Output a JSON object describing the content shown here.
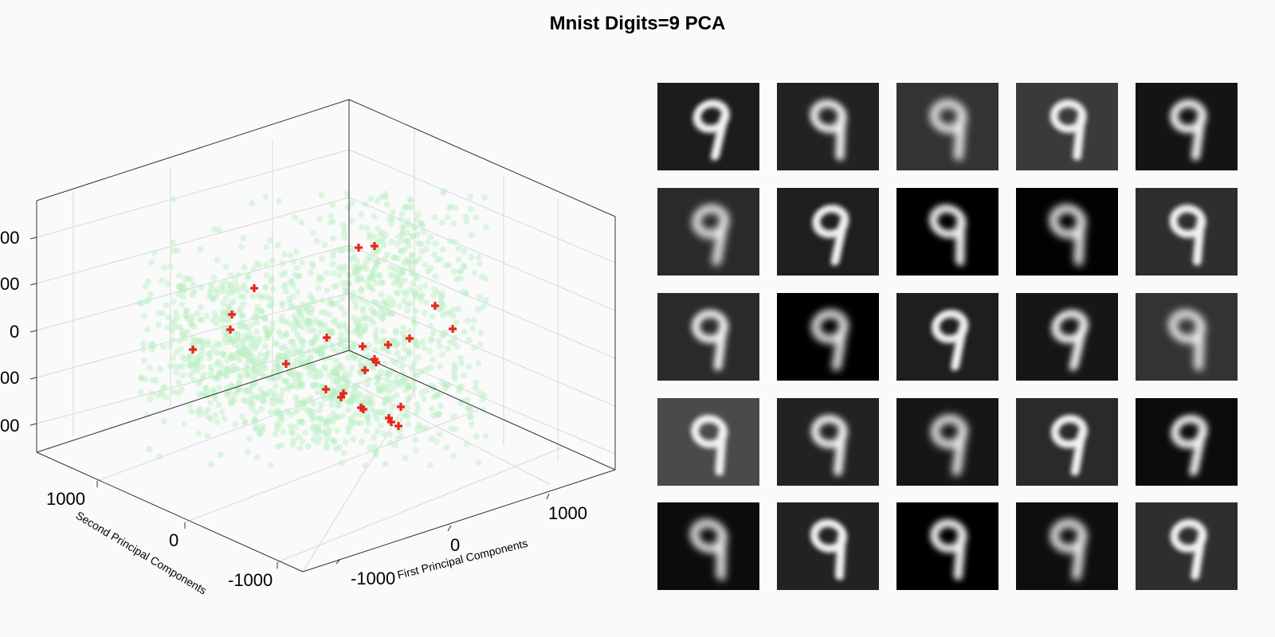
{
  "chart_data": {
    "type": "scatter",
    "projection": "3d",
    "title": "Mnist Digits=9 PCA",
    "xlabel": "First Principal  Components",
    "ylabel": "Second Principal  Components",
    "zlabel": "",
    "grid": true,
    "x_ticks": [
      "-1000",
      "0",
      "1000"
    ],
    "y_ticks": [
      "1000",
      "0",
      "-1000"
    ],
    "z_ticks": [
      "00",
      "00",
      "0",
      "00",
      "00"
    ],
    "series": [
      {
        "role": "samples",
        "color": "#b8f0c0",
        "marker": "circle",
        "count_shown": "dense cloud"
      },
      {
        "role": "selected",
        "color": "#e8261c",
        "marker": "plus",
        "points_px_estimate_note": "",
        "x": [
          -300,
          -200,
          600,
          900,
          200,
          100,
          -600,
          -800,
          -900,
          -1100,
          -500,
          0,
          100,
          200,
          300,
          50,
          -100,
          50,
          400,
          500,
          450,
          500,
          450
        ],
        "y": [
          700,
          800,
          -200,
          -400,
          -300,
          -150,
          700,
          900,
          900,
          1100,
          300,
          100,
          -100,
          -50,
          0,
          -300,
          -500,
          -500,
          -700,
          -750,
          -800,
          -650,
          -700
        ],
        "z": [
          700,
          700,
          300,
          0,
          0,
          0,
          500,
          350,
          0,
          -300,
          -200,
          -200,
          -200,
          -100,
          -100,
          -200,
          -300,
          -300,
          -300,
          -300,
          -400,
          -300,
          -300
        ]
      }
    ]
  },
  "thumbnails": {
    "rows": 5,
    "cols": 5,
    "digit": "9",
    "backgrounds": [
      "#1c1c1c",
      "#222222",
      "#333333",
      "#3a3a3a",
      "#141414",
      "#2a2a2a",
      "#1e1e1e",
      "#000000",
      "#020202",
      "#2e2e2e",
      "#2a2a2a",
      "#000000",
      "#1e1e1e",
      "#161616",
      "#333333",
      "#4a4a4a",
      "#222222",
      "#161616",
      "#2a2a2a",
      "#0c0c0c",
      "#0c0c0c",
      "#222222",
      "#000000",
      "#0e0e0e",
      "#2e2e2e"
    ]
  }
}
